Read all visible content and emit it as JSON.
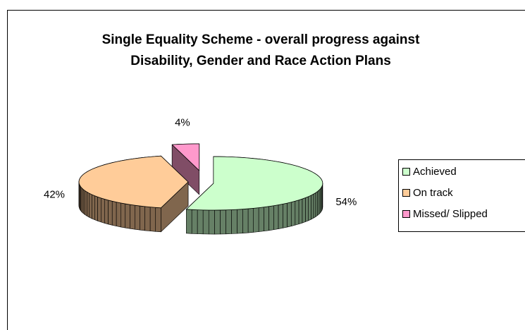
{
  "chart_data": {
    "type": "pie",
    "title": [
      "Single Equality Scheme - overall progress against",
      "Disability, Gender and Race Action Plans"
    ],
    "categories": [
      "Achieved",
      "On track",
      "Missed/ Slipped"
    ],
    "values": [
      54,
      42,
      4
    ],
    "value_labels": [
      "54%",
      "42%",
      "4%"
    ],
    "colors": [
      "#ccffcc",
      "#ffcc99",
      "#ff99cc"
    ],
    "legend": "right"
  }
}
